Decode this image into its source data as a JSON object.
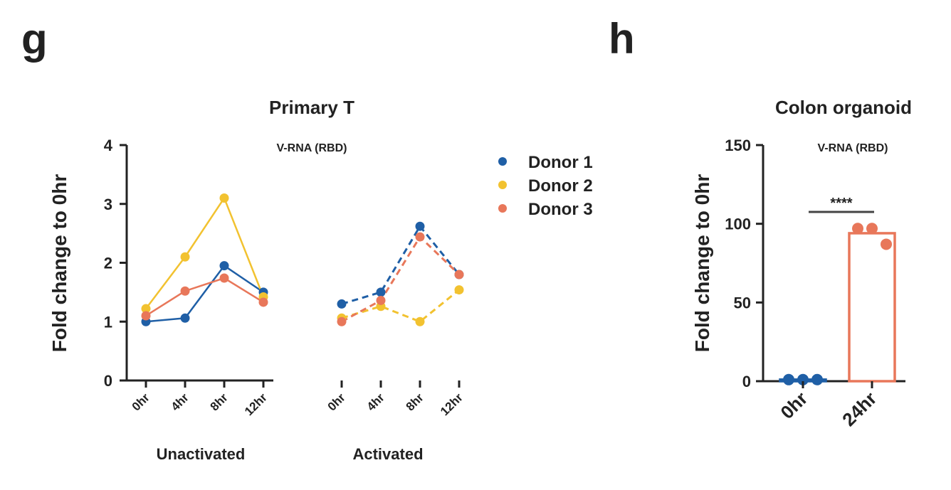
{
  "panels": {
    "g": "g",
    "h": "h"
  },
  "colors": {
    "donor1": "#1f5fa6",
    "donor2": "#f2c230",
    "donor3": "#e8775a",
    "axis": "#222222"
  },
  "chart_data": [
    {
      "id": "g",
      "type": "line",
      "title": "Primary T",
      "subtitle": "V-RNA (RBD)",
      "ylabel": "Fold change to 0hr",
      "ylim": [
        0,
        4
      ],
      "yticks": [
        "0",
        "1",
        "2",
        "3",
        "4"
      ],
      "groups": [
        {
          "name": "Unactivated",
          "categories": [
            "0hr",
            "4hr",
            "8hr",
            "12hr"
          ],
          "line_style": "solid"
        },
        {
          "name": "Activated",
          "categories": [
            "0hr",
            "4hr",
            "8hr",
            "12hr"
          ],
          "line_style": "dashed"
        }
      ],
      "series": [
        {
          "name": "Donor 1",
          "color": "#1f5fa6",
          "values": [
            [
              1.0,
              1.06,
              1.95,
              1.5
            ],
            [
              1.3,
              1.5,
              2.62,
              1.8
            ]
          ]
        },
        {
          "name": "Donor 2",
          "color": "#f2c230",
          "values": [
            [
              1.22,
              2.1,
              3.1,
              1.42
            ],
            [
              1.06,
              1.26,
              1.0,
              1.54
            ]
          ]
        },
        {
          "name": "Donor 3",
          "color": "#e8775a",
          "values": [
            [
              1.1,
              1.52,
              1.74,
              1.33
            ],
            [
              1.0,
              1.36,
              2.44,
              1.8
            ]
          ]
        }
      ],
      "legend": "right"
    },
    {
      "id": "h",
      "type": "bar",
      "title": "Colon organoid",
      "subtitle": "V-RNA (RBD)",
      "ylabel": "Fold change to 0hr",
      "ylim": [
        0,
        150
      ],
      "yticks": [
        "0",
        "50",
        "100",
        "150"
      ],
      "categories": [
        "0hr",
        "24hr"
      ],
      "values": [
        1,
        94
      ],
      "points": [
        [
          1,
          1,
          1
        ],
        [
          97,
          97,
          87
        ]
      ],
      "colors": [
        "#1f5fa6",
        "#e8775a"
      ],
      "significance": "****"
    }
  ]
}
